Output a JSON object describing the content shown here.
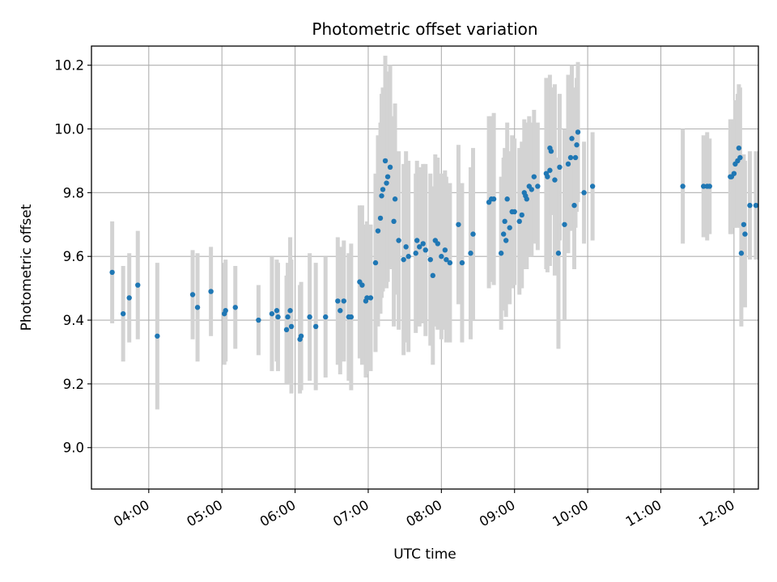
{
  "chart_data": {
    "type": "scatter",
    "title": "Photometric offset variation",
    "xlabel": "UTC time",
    "ylabel": "Photometric offset",
    "x_unit": "UTC time (HH:MM)",
    "xlim": [
      "03:13",
      "12:20"
    ],
    "ylim": [
      8.87,
      10.26
    ],
    "xticks": [
      "04:00",
      "05:00",
      "06:00",
      "07:00",
      "08:00",
      "09:00",
      "10:00",
      "11:00",
      "12:00"
    ],
    "yticks": [
      9.0,
      9.2,
      9.4,
      9.6,
      9.8,
      10.0,
      10.2
    ],
    "ytick_labels": [
      "9.0",
      "9.2",
      "9.4",
      "9.6",
      "9.8",
      "10.0",
      "10.2"
    ],
    "grid": true,
    "colors": {
      "points": "#1f77b4",
      "error_bars": "#d3d3d3",
      "grid": "#b0b0b0",
      "frame": "#000000"
    },
    "series": [
      {
        "points": [
          [
            "03:30",
            9.55,
            0.16
          ],
          [
            "03:39",
            9.42,
            0.15
          ],
          [
            "03:44",
            9.47,
            0.14
          ],
          [
            "03:51",
            9.51,
            0.17
          ],
          [
            "04:07",
            9.35,
            0.23
          ],
          [
            "04:36",
            9.48,
            0.14
          ],
          [
            "04:40",
            9.44,
            0.17
          ],
          [
            "04:51",
            9.49,
            0.14
          ],
          [
            "05:02",
            9.42,
            0.16
          ],
          [
            "05:03",
            9.43,
            0.16
          ],
          [
            "05:11",
            9.44,
            0.13
          ],
          [
            "05:30",
            9.4,
            0.11
          ],
          [
            "05:41",
            9.42,
            0.18
          ],
          [
            "05:45",
            9.43,
            0.16
          ],
          [
            "05:46",
            9.41,
            0.17
          ],
          [
            "05:53",
            9.37,
            0.17
          ],
          [
            "05:54",
            9.41,
            0.17
          ],
          [
            "05:56",
            9.43,
            0.23
          ],
          [
            "05:57",
            9.38,
            0.21
          ],
          [
            "06:04",
            9.34,
            0.17
          ],
          [
            "06:05",
            9.35,
            0.17
          ],
          [
            "06:12",
            9.41,
            0.2
          ],
          [
            "06:17",
            9.38,
            0.2
          ],
          [
            "06:25",
            9.41,
            0.19
          ],
          [
            "06:35",
            9.46,
            0.2
          ],
          [
            "06:37",
            9.43,
            0.2
          ],
          [
            "06:40",
            9.46,
            0.19
          ],
          [
            "06:44",
            9.41,
            0.2
          ],
          [
            "06:46",
            9.41,
            0.23
          ],
          [
            "06:53",
            9.52,
            0.24
          ],
          [
            "06:55",
            9.51,
            0.25
          ],
          [
            "06:58",
            9.46,
            0.24
          ],
          [
            "06:59",
            9.47,
            0.24
          ],
          [
            "07:02",
            9.47,
            0.23
          ],
          [
            "07:06",
            9.58,
            0.28
          ],
          [
            "07:08",
            9.68,
            0.3
          ],
          [
            "07:10",
            9.72,
            0.3
          ],
          [
            "07:11",
            9.79,
            0.32
          ],
          [
            "07:12",
            9.81,
            0.32
          ],
          [
            "07:14",
            9.9,
            0.33
          ],
          [
            "07:15",
            9.83,
            0.33
          ],
          [
            "07:16",
            9.85,
            0.33
          ],
          [
            "07:18",
            9.88,
            0.32
          ],
          [
            "07:21",
            9.71,
            0.33
          ],
          [
            "07:22",
            9.78,
            0.3
          ],
          [
            "07:25",
            9.65,
            0.28
          ],
          [
            "07:29",
            9.59,
            0.3
          ],
          [
            "07:31",
            9.63,
            0.3
          ],
          [
            "07:33",
            9.6,
            0.3
          ],
          [
            "07:39",
            9.61,
            0.25
          ],
          [
            "07:40",
            9.65,
            0.25
          ],
          [
            "07:42",
            9.63,
            0.25
          ],
          [
            "07:45",
            9.64,
            0.25
          ],
          [
            "07:47",
            9.62,
            0.27
          ],
          [
            "07:51",
            9.59,
            0.27
          ],
          [
            "07:53",
            9.54,
            0.28
          ],
          [
            "07:55",
            9.65,
            0.27
          ],
          [
            "07:57",
            9.64,
            0.27
          ],
          [
            "08:00",
            9.6,
            0.26
          ],
          [
            "08:03",
            9.62,
            0.25
          ],
          [
            "08:04",
            9.59,
            0.26
          ],
          [
            "08:07",
            9.58,
            0.25
          ],
          [
            "08:14",
            9.7,
            0.25
          ],
          [
            "08:17",
            9.58,
            0.25
          ],
          [
            "08:24",
            9.61,
            0.27
          ],
          [
            "08:26",
            9.67,
            0.27
          ],
          [
            "08:39",
            9.77,
            0.27
          ],
          [
            "08:41",
            9.78,
            0.26
          ],
          [
            "08:43",
            9.78,
            0.27
          ],
          [
            "08:49",
            9.61,
            0.24
          ],
          [
            "08:51",
            9.67,
            0.24
          ],
          [
            "08:52",
            9.71,
            0.23
          ],
          [
            "08:53",
            9.65,
            0.24
          ],
          [
            "08:54",
            9.78,
            0.24
          ],
          [
            "08:56",
            9.69,
            0.24
          ],
          [
            "08:58",
            9.74,
            0.24
          ],
          [
            "09:00",
            9.74,
            0.23
          ],
          [
            "09:04",
            9.71,
            0.23
          ],
          [
            "09:06",
            9.73,
            0.23
          ],
          [
            "09:08",
            9.8,
            0.23
          ],
          [
            "09:09",
            9.79,
            0.23
          ],
          [
            "09:10",
            9.78,
            0.22
          ],
          [
            "09:12",
            9.82,
            0.22
          ],
          [
            "09:14",
            9.81,
            0.21
          ],
          [
            "09:16",
            9.85,
            0.21
          ],
          [
            "09:19",
            9.82,
            0.2
          ],
          [
            "09:26",
            9.86,
            0.3
          ],
          [
            "09:27",
            9.85,
            0.3
          ],
          [
            "09:29",
            9.87,
            0.3
          ],
          [
            "09:29",
            9.94,
            0.2
          ],
          [
            "09:30",
            9.93,
            0.2
          ],
          [
            "09:33",
            9.84,
            0.3
          ],
          [
            "09:36",
            9.61,
            0.3
          ],
          [
            "09:37",
            9.88,
            0.23
          ],
          [
            "09:41",
            9.7,
            0.3
          ],
          [
            "09:44",
            9.89,
            0.28
          ],
          [
            "09:46",
            9.91,
            0.23
          ],
          [
            "09:47",
            9.97,
            0.23
          ],
          [
            "09:49",
            9.76,
            0.2
          ],
          [
            "09:50",
            9.91,
            0.22
          ],
          [
            "09:51",
            9.95,
            0.21
          ],
          [
            "09:52",
            9.99,
            0.22
          ],
          [
            "09:57",
            9.8,
            0.16
          ],
          [
            "10:04",
            9.82,
            0.17
          ],
          [
            "11:18",
            9.82,
            0.18
          ],
          [
            "11:35",
            9.82,
            0.16
          ],
          [
            "11:38",
            9.82,
            0.17
          ],
          [
            "11:40",
            9.82,
            0.15
          ],
          [
            "11:57",
            9.85,
            0.18
          ],
          [
            "11:58",
            9.85,
            0.18
          ],
          [
            "12:00",
            9.86,
            0.17
          ],
          [
            "12:01",
            9.89,
            0.2
          ],
          [
            "12:03",
            9.9,
            0.21
          ],
          [
            "12:04",
            9.94,
            0.2
          ],
          [
            "12:05",
            9.91,
            0.22
          ],
          [
            "12:06",
            9.61,
            0.23
          ],
          [
            "12:08",
            9.7,
            0.22
          ],
          [
            "12:09",
            9.67,
            0.23
          ],
          [
            "12:13",
            9.76,
            0.17
          ],
          [
            "12:18",
            9.76,
            0.17
          ]
        ]
      }
    ]
  }
}
